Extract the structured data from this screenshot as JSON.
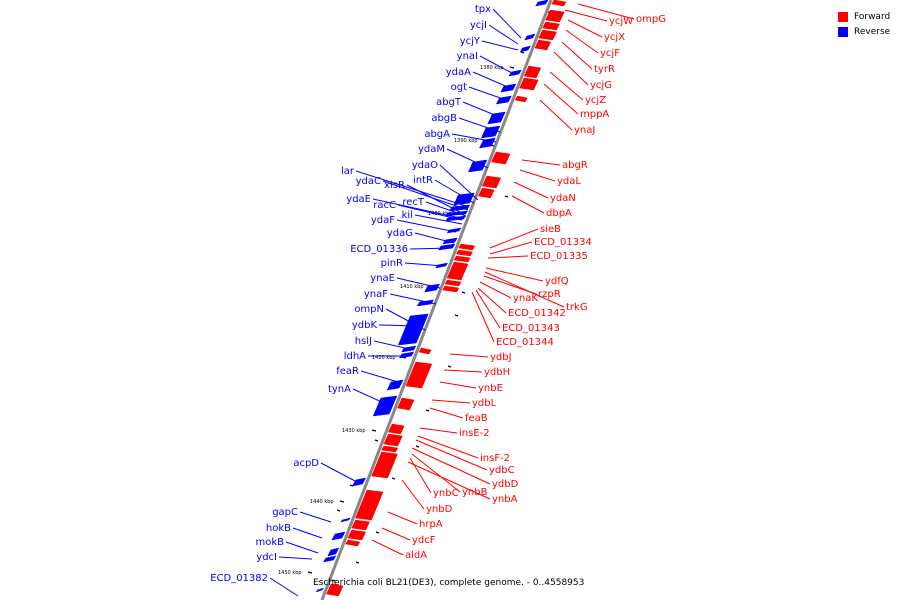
{
  "legend": {
    "items": [
      {
        "label": "Forward",
        "color": "#ff0000"
      },
      {
        "label": "Reverse",
        "color": "#0000ff"
      }
    ]
  },
  "caption": "Escherichia coli BL21(DE3), complete genome. - 0..4558953",
  "colors": {
    "forward": "#ff0000",
    "reverse": "#0000ff",
    "axis": "#888888"
  },
  "ticks": [
    "1380 kbp",
    "1390 kbp",
    "1400 kbp",
    "1410 kbp",
    "1420 kbp",
    "1430 kbp",
    "1440 kbp",
    "1450 kbp"
  ],
  "reverse_genes": [
    "tpx",
    "ycjI",
    "ycjY",
    "ynaI",
    "ydaA",
    "ogt",
    "abgT",
    "abgB",
    "abgA",
    "ydaM",
    "ydaO",
    "lar",
    "ydaC",
    "xisR",
    "intR",
    "ydaE",
    "racC",
    "recT",
    "kil",
    "ydaF",
    "ydaG",
    "ECD_01336",
    "pinR",
    "ynaE",
    "ynaF",
    "ompN",
    "ydbK",
    "hslJ",
    "ldhA",
    "feaR",
    "tynA",
    "acpD",
    "gapC",
    "hokB",
    "mokB",
    "ydcI",
    "ECD_01382"
  ],
  "forward_genes": [
    "ycjW",
    "ompG",
    "ycjX",
    "ycjF",
    "tyrR",
    "ycjG",
    "ycjZ",
    "mppA",
    "ynaJ",
    "abgR",
    "ydaL",
    "ydaN",
    "dbpA",
    "sieB",
    "ECD_01334",
    "ECD_01335",
    "ydfQ",
    "rzpR",
    "ynaK",
    "trkG",
    "ECD_01342",
    "ECD_01343",
    "ECD_01344",
    "ydbJ",
    "ydbH",
    "ynbE",
    "ydbL",
    "feaB",
    "insE-2",
    "insF-2",
    "ydbC",
    "ydbD",
    "ynbB",
    "ynbC",
    "ynbA",
    "ynbD",
    "hrpA",
    "ydcF",
    "aldA"
  ]
}
